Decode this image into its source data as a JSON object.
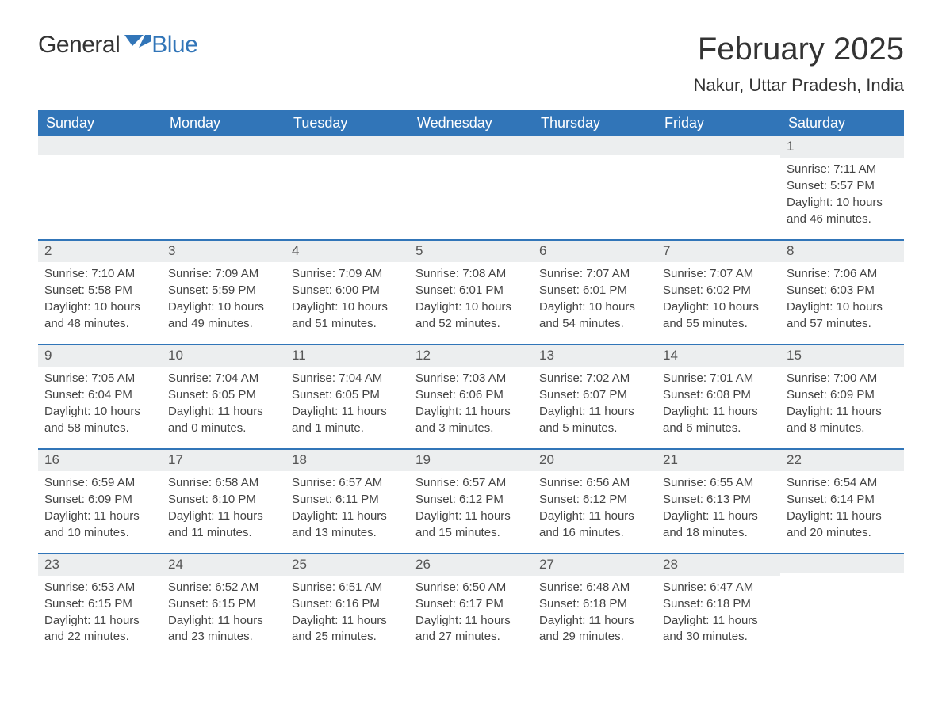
{
  "brand": {
    "name1": "General",
    "name2": "Blue"
  },
  "title": "February 2025",
  "location": "Nakur, Uttar Pradesh, India",
  "colors": {
    "header_bg": "#3175b8",
    "header_text": "#ffffff",
    "row_stripe": "#eceeef",
    "border": "#3175b8",
    "body_text": "#444444",
    "logo_blue": "#3175b8"
  },
  "day_labels": [
    "Sunday",
    "Monday",
    "Tuesday",
    "Wednesday",
    "Thursday",
    "Friday",
    "Saturday"
  ],
  "weeks": [
    [
      null,
      null,
      null,
      null,
      null,
      null,
      {
        "n": "1",
        "sunrise": "7:11 AM",
        "sunset": "5:57 PM",
        "daylight": "10 hours and 46 minutes."
      }
    ],
    [
      {
        "n": "2",
        "sunrise": "7:10 AM",
        "sunset": "5:58 PM",
        "daylight": "10 hours and 48 minutes."
      },
      {
        "n": "3",
        "sunrise": "7:09 AM",
        "sunset": "5:59 PM",
        "daylight": "10 hours and 49 minutes."
      },
      {
        "n": "4",
        "sunrise": "7:09 AM",
        "sunset": "6:00 PM",
        "daylight": "10 hours and 51 minutes."
      },
      {
        "n": "5",
        "sunrise": "7:08 AM",
        "sunset": "6:01 PM",
        "daylight": "10 hours and 52 minutes."
      },
      {
        "n": "6",
        "sunrise": "7:07 AM",
        "sunset": "6:01 PM",
        "daylight": "10 hours and 54 minutes."
      },
      {
        "n": "7",
        "sunrise": "7:07 AM",
        "sunset": "6:02 PM",
        "daylight": "10 hours and 55 minutes."
      },
      {
        "n": "8",
        "sunrise": "7:06 AM",
        "sunset": "6:03 PM",
        "daylight": "10 hours and 57 minutes."
      }
    ],
    [
      {
        "n": "9",
        "sunrise": "7:05 AM",
        "sunset": "6:04 PM",
        "daylight": "10 hours and 58 minutes."
      },
      {
        "n": "10",
        "sunrise": "7:04 AM",
        "sunset": "6:05 PM",
        "daylight": "11 hours and 0 minutes."
      },
      {
        "n": "11",
        "sunrise": "7:04 AM",
        "sunset": "6:05 PM",
        "daylight": "11 hours and 1 minute."
      },
      {
        "n": "12",
        "sunrise": "7:03 AM",
        "sunset": "6:06 PM",
        "daylight": "11 hours and 3 minutes."
      },
      {
        "n": "13",
        "sunrise": "7:02 AM",
        "sunset": "6:07 PM",
        "daylight": "11 hours and 5 minutes."
      },
      {
        "n": "14",
        "sunrise": "7:01 AM",
        "sunset": "6:08 PM",
        "daylight": "11 hours and 6 minutes."
      },
      {
        "n": "15",
        "sunrise": "7:00 AM",
        "sunset": "6:09 PM",
        "daylight": "11 hours and 8 minutes."
      }
    ],
    [
      {
        "n": "16",
        "sunrise": "6:59 AM",
        "sunset": "6:09 PM",
        "daylight": "11 hours and 10 minutes."
      },
      {
        "n": "17",
        "sunrise": "6:58 AM",
        "sunset": "6:10 PM",
        "daylight": "11 hours and 11 minutes."
      },
      {
        "n": "18",
        "sunrise": "6:57 AM",
        "sunset": "6:11 PM",
        "daylight": "11 hours and 13 minutes."
      },
      {
        "n": "19",
        "sunrise": "6:57 AM",
        "sunset": "6:12 PM",
        "daylight": "11 hours and 15 minutes."
      },
      {
        "n": "20",
        "sunrise": "6:56 AM",
        "sunset": "6:12 PM",
        "daylight": "11 hours and 16 minutes."
      },
      {
        "n": "21",
        "sunrise": "6:55 AM",
        "sunset": "6:13 PM",
        "daylight": "11 hours and 18 minutes."
      },
      {
        "n": "22",
        "sunrise": "6:54 AM",
        "sunset": "6:14 PM",
        "daylight": "11 hours and 20 minutes."
      }
    ],
    [
      {
        "n": "23",
        "sunrise": "6:53 AM",
        "sunset": "6:15 PM",
        "daylight": "11 hours and 22 minutes."
      },
      {
        "n": "24",
        "sunrise": "6:52 AM",
        "sunset": "6:15 PM",
        "daylight": "11 hours and 23 minutes."
      },
      {
        "n": "25",
        "sunrise": "6:51 AM",
        "sunset": "6:16 PM",
        "daylight": "11 hours and 25 minutes."
      },
      {
        "n": "26",
        "sunrise": "6:50 AM",
        "sunset": "6:17 PM",
        "daylight": "11 hours and 27 minutes."
      },
      {
        "n": "27",
        "sunrise": "6:48 AM",
        "sunset": "6:18 PM",
        "daylight": "11 hours and 29 minutes."
      },
      {
        "n": "28",
        "sunrise": "6:47 AM",
        "sunset": "6:18 PM",
        "daylight": "11 hours and 30 minutes."
      },
      null
    ]
  ],
  "labels": {
    "sunrise": "Sunrise: ",
    "sunset": "Sunset: ",
    "daylight": "Daylight: "
  }
}
